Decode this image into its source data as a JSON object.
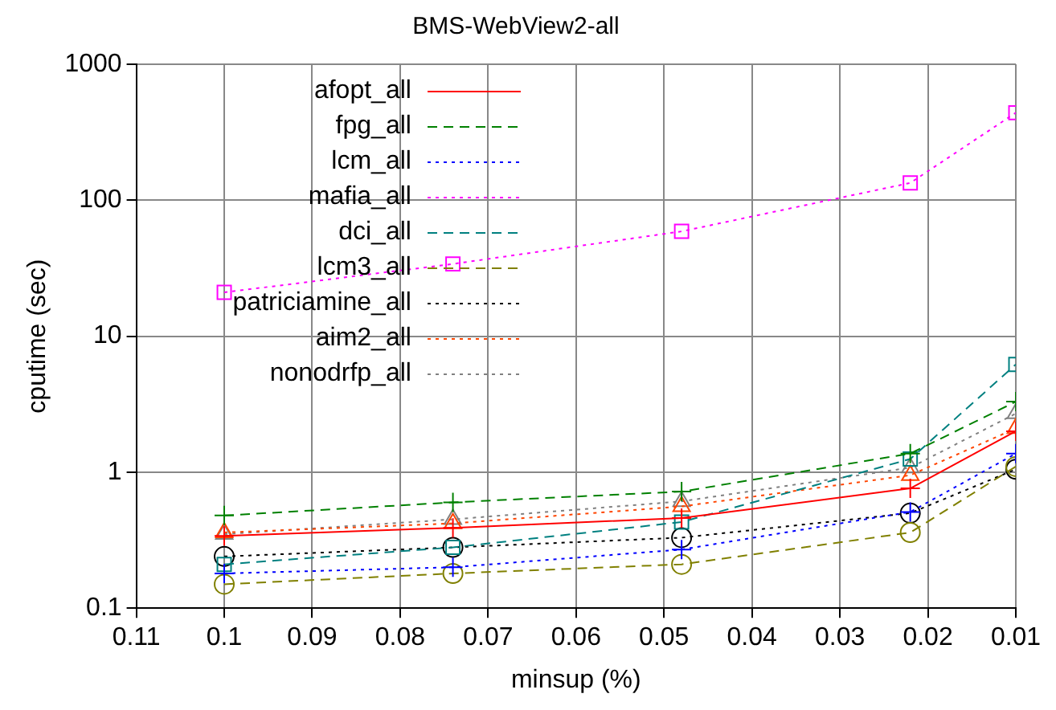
{
  "chart_data": {
    "type": "line",
    "title": "BMS-WebView2-all",
    "xlabel": "minsup (%)",
    "ylabel": "cputime (sec)",
    "x": [
      0.1,
      0.074,
      0.048,
      0.022,
      0.01
    ],
    "xlim": [
      0.11,
      0.01
    ],
    "xticks": [
      0.11,
      0.1,
      0.09,
      0.08,
      0.07,
      0.06,
      0.05,
      0.04,
      0.03,
      0.02,
      0.01
    ],
    "ylim": [
      0.1,
      1000
    ],
    "yticks": [
      0.1,
      1,
      10,
      100,
      1000
    ],
    "log": "y",
    "grid": true,
    "legend": "top left",
    "series": [
      {
        "name": "afopt_all",
        "color": "#ff0000",
        "marker": "cross",
        "line_style": "solid",
        "values": [
          0.34,
          0.39,
          0.46,
          0.76,
          2.0
        ]
      },
      {
        "name": "fpg_all",
        "color": "#008000",
        "marker": "cross",
        "line_style": "dashed",
        "values": [
          0.48,
          0.6,
          0.72,
          1.37,
          3.3
        ]
      },
      {
        "name": "lcm_all",
        "color": "#0000ff",
        "marker": "cross",
        "line_style": "dotted",
        "values": [
          0.18,
          0.2,
          0.27,
          0.51,
          1.37
        ]
      },
      {
        "name": "mafia_all",
        "color": "#ff00ff",
        "marker": "square",
        "line_style": "dotted",
        "values": [
          21,
          34,
          59,
          134,
          440
        ]
      },
      {
        "name": "dci_all",
        "color": "#008080",
        "marker": "square",
        "line_style": "dashed",
        "values": [
          0.21,
          0.28,
          0.43,
          1.25,
          6.2
        ]
      },
      {
        "name": "lcm3_all",
        "color": "#808000",
        "marker": "circle",
        "line_style": "dashed",
        "values": [
          0.15,
          0.18,
          0.21,
          0.36,
          1.1
        ]
      },
      {
        "name": "patriciamine_all",
        "color": "#000000",
        "marker": "circle",
        "line_style": "dotted",
        "values": [
          0.24,
          0.28,
          0.33,
          0.5,
          1.05
        ]
      },
      {
        "name": "aim2_all",
        "color": "#ff4500",
        "marker": "triangle",
        "line_style": "dotted",
        "values": [
          0.36,
          0.42,
          0.56,
          0.95,
          2.1
        ]
      },
      {
        "name": "nonodrfp_all",
        "color": "#808080",
        "marker": "triangle",
        "line_style": "dotted",
        "values": [
          0.35,
          0.45,
          0.61,
          1.08,
          2.7
        ]
      }
    ]
  }
}
